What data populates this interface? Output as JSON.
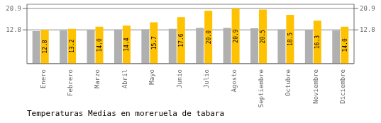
{
  "chart_data": {
    "type": "bar",
    "title": "Temperaturas Medias en moreruela de tabara",
    "categories": [
      "Enero",
      "Febrero",
      "Marzo",
      "Abril",
      "Mayo",
      "Junio",
      "Julio",
      "Agosto",
      "Septiembre",
      "Octubre",
      "Noviembre",
      "Diciembre"
    ],
    "series": [
      {
        "color": "#B0B0B0",
        "values": [
          12.3,
          12.5,
          12.8,
          12.9,
          13.0,
          13.2,
          13.5,
          13.5,
          13.4,
          13.0,
          12.7,
          12.5
        ]
      },
      {
        "color": "#FFC200",
        "values": [
          12.8,
          13.2,
          14.0,
          14.4,
          15.7,
          17.6,
          20.0,
          20.9,
          20.5,
          18.5,
          16.3,
          14.0
        ],
        "data_labels": true,
        "value_labels": [
          "12.8",
          "13.2",
          "14.0",
          "14.4",
          "15.7",
          "17.6",
          "20.0",
          "20.9",
          "20.5",
          "18.5",
          "16.3",
          "14.0"
        ]
      }
    ],
    "ylim": [
      0,
      22.5
    ],
    "yticks": [
      12.8,
      20.9
    ],
    "y2lim": [
      0,
      22.5
    ],
    "y2ticks": [
      12.8,
      20.9
    ],
    "grid": true
  }
}
